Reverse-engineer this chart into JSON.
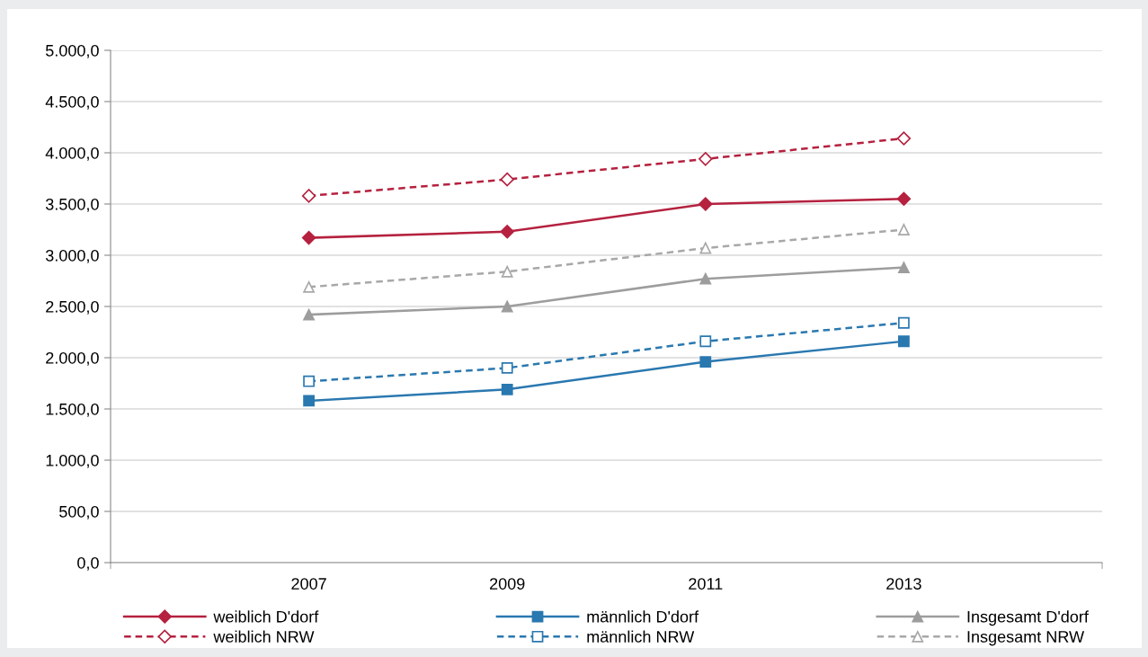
{
  "chart_data": {
    "type": "line",
    "categories": [
      "2007",
      "2009",
      "2011",
      "2013"
    ],
    "series": [
      {
        "name": "weiblich D'dorf",
        "color": "#b5213f",
        "values": [
          3170,
          3230,
          3500,
          3550
        ],
        "marker": "diamond",
        "line_style": "solid"
      },
      {
        "name": "weiblich NRW",
        "color": "#b5213f",
        "values": [
          3580,
          3740,
          3940,
          4140
        ],
        "marker": "diamond",
        "line_style": "dashed"
      },
      {
        "name": "männlich D'dorf",
        "color": "#2a78b0",
        "values": [
          1580,
          1690,
          1960,
          2160
        ],
        "marker": "square",
        "line_style": "solid"
      },
      {
        "name": "männlich NRW",
        "color": "#2a78b0",
        "values": [
          1770,
          1900,
          2160,
          2340
        ],
        "marker": "square",
        "line_style": "dashed"
      },
      {
        "name": "Insgesamt D'dorf",
        "color": "#9d9d9d",
        "values": [
          2420,
          2500,
          2770,
          2880
        ],
        "marker": "triangle",
        "line_style": "solid"
      },
      {
        "name": "Insgesamt NRW",
        "color": "#a8a8a8",
        "values": [
          2690,
          2840,
          3070,
          3250
        ],
        "marker": "triangle",
        "line_style": "dashed"
      }
    ],
    "ylim": [
      0,
      5000
    ],
    "yticks": [
      {
        "value": 0,
        "label": "0,0"
      },
      {
        "value": 500,
        "label": "500,0"
      },
      {
        "value": 1000,
        "label": "1.000,0"
      },
      {
        "value": 1500,
        "label": "1.500,0"
      },
      {
        "value": 2000,
        "label": "2.000,0"
      },
      {
        "value": 2500,
        "label": "2.500,0"
      },
      {
        "value": 3000,
        "label": "3.000,0"
      },
      {
        "value": 3500,
        "label": "3.500,0"
      },
      {
        "value": 4000,
        "label": "4.000,0"
      },
      {
        "value": 4500,
        "label": "4.500,0"
      },
      {
        "value": 5000,
        "label": "5.000,0"
      }
    ],
    "grid": "y",
    "legend": "bottom"
  }
}
